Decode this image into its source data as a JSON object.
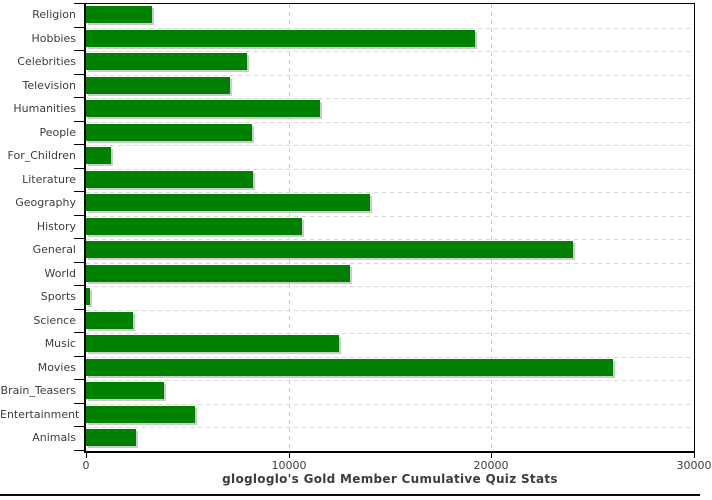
{
  "title": "glogloglo's Gold Member Cumulative Quiz Stats",
  "colors": {
    "bar": "#008000",
    "bar_shadow": "#cccccc",
    "grid": "#cccccc",
    "axis": "#000000",
    "text": "#3d3d3d",
    "background": "#ffffff"
  },
  "chart_data": {
    "type": "bar",
    "orientation": "horizontal",
    "title": "glogloglo's Gold Member Cumulative Quiz Stats",
    "categories": [
      "Religion",
      "Hobbies",
      "Celebrities",
      "Television",
      "Humanities",
      "People",
      "For_Children",
      "Literature",
      "Geography",
      "History",
      "General",
      "World",
      "Sports",
      "Science",
      "Music",
      "Movies",
      "Brain_Teasers",
      "Entertainment",
      "Animals"
    ],
    "values": [
      3250,
      19210,
      7950,
      7100,
      11540,
      8210,
      1230,
      8250,
      14000,
      10640,
      24020,
      13020,
      210,
      2300,
      12460,
      26000,
      3830,
      5380,
      2460
    ],
    "xlabel": "",
    "ylabel": "",
    "xlim": [
      0,
      30000
    ],
    "x_ticks": [
      0,
      10000,
      20000,
      30000
    ],
    "x_tick_labels": [
      "0",
      "10000",
      "20000",
      "30000"
    ],
    "grid": true,
    "legend": false
  }
}
